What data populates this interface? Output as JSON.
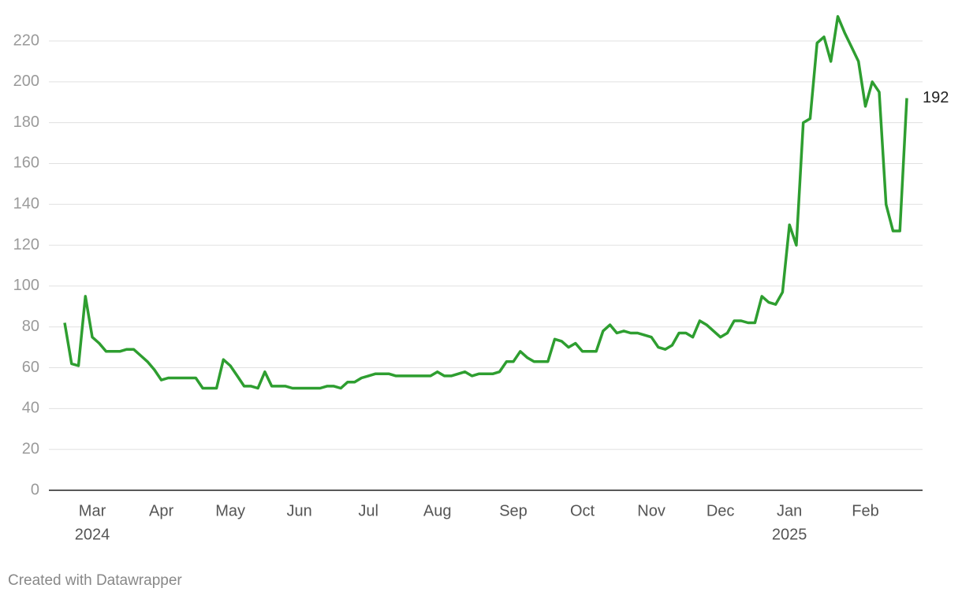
{
  "chart_data": {
    "type": "line",
    "categories": [
      null,
      null,
      null,
      null,
      "Mar",
      null,
      null,
      null,
      null,
      null,
      null,
      null,
      null,
      null,
      "Apr",
      null,
      null,
      null,
      null,
      null,
      null,
      null,
      null,
      null,
      "May",
      null,
      null,
      null,
      null,
      null,
      null,
      null,
      null,
      null,
      "Jun",
      null,
      null,
      null,
      null,
      null,
      null,
      null,
      null,
      null,
      "Jul",
      null,
      null,
      null,
      null,
      null,
      null,
      null,
      null,
      null,
      "Aug",
      null,
      null,
      null,
      null,
      null,
      null,
      null,
      null,
      null,
      null,
      "Sep",
      null,
      null,
      null,
      null,
      null,
      null,
      null,
      null,
      null,
      "Oct",
      null,
      null,
      null,
      null,
      null,
      null,
      null,
      null,
      null,
      "Nov",
      null,
      null,
      null,
      null,
      null,
      null,
      null,
      null,
      null,
      "Dec",
      null,
      null,
      null,
      null,
      null,
      null,
      null,
      null,
      null,
      "Jan",
      null,
      null,
      null,
      null,
      null,
      null,
      null,
      null,
      null,
      null,
      "Feb",
      null,
      null,
      null,
      null,
      null,
      null
    ],
    "category_years": [
      null,
      null,
      null,
      null,
      "2024",
      null,
      null,
      null,
      null,
      null,
      null,
      null,
      null,
      null,
      null,
      null,
      null,
      null,
      null,
      null,
      null,
      null,
      null,
      null,
      null,
      null,
      null,
      null,
      null,
      null,
      null,
      null,
      null,
      null,
      null,
      null,
      null,
      null,
      null,
      null,
      null,
      null,
      null,
      null,
      null,
      null,
      null,
      null,
      null,
      null,
      null,
      null,
      null,
      null,
      null,
      null,
      null,
      null,
      null,
      null,
      null,
      null,
      null,
      null,
      null,
      null,
      null,
      null,
      null,
      null,
      null,
      null,
      null,
      null,
      null,
      null,
      null,
      null,
      null,
      null,
      null,
      null,
      null,
      null,
      null,
      null,
      null,
      null,
      null,
      null,
      null,
      null,
      null,
      null,
      null,
      null,
      null,
      null,
      null,
      null,
      null,
      null,
      null,
      null,
      null,
      "2025",
      null,
      null,
      null,
      null,
      null,
      null,
      null,
      null,
      null,
      null,
      null,
      null,
      null,
      null,
      null,
      null,
      null
    ],
    "values": [
      82,
      62,
      61,
      95,
      75,
      72,
      68,
      68,
      68,
      69,
      69,
      66,
      63,
      59,
      54,
      55,
      55,
      55,
      55,
      55,
      50,
      50,
      50,
      64,
      61,
      56,
      51,
      51,
      50,
      58,
      51,
      51,
      51,
      50,
      50,
      50,
      50,
      50,
      51,
      51,
      50,
      53,
      53,
      55,
      56,
      57,
      57,
      57,
      56,
      56,
      56,
      56,
      56,
      56,
      58,
      56,
      56,
      57,
      58,
      56,
      57,
      57,
      57,
      58,
      63,
      63,
      68,
      65,
      63,
      63,
      63,
      74,
      73,
      70,
      72,
      68,
      68,
      68,
      78,
      81,
      77,
      78,
      77,
      77,
      76,
      75,
      70,
      69,
      71,
      77,
      77,
      75,
      83,
      81,
      78,
      75,
      77,
      83,
      83,
      82,
      82,
      95,
      92,
      91,
      97,
      130,
      120,
      180,
      182,
      219,
      222,
      210,
      232,
      224,
      217,
      210,
      188,
      200,
      195,
      140,
      127,
      127,
      192
    ],
    "color": "#2e9e30",
    "ylim": [
      0,
      220
    ],
    "yticks": [
      0,
      20,
      40,
      60,
      80,
      100,
      120,
      140,
      160,
      180,
      200,
      220
    ],
    "grid": true,
    "source": "Created with Datawrapper"
  }
}
